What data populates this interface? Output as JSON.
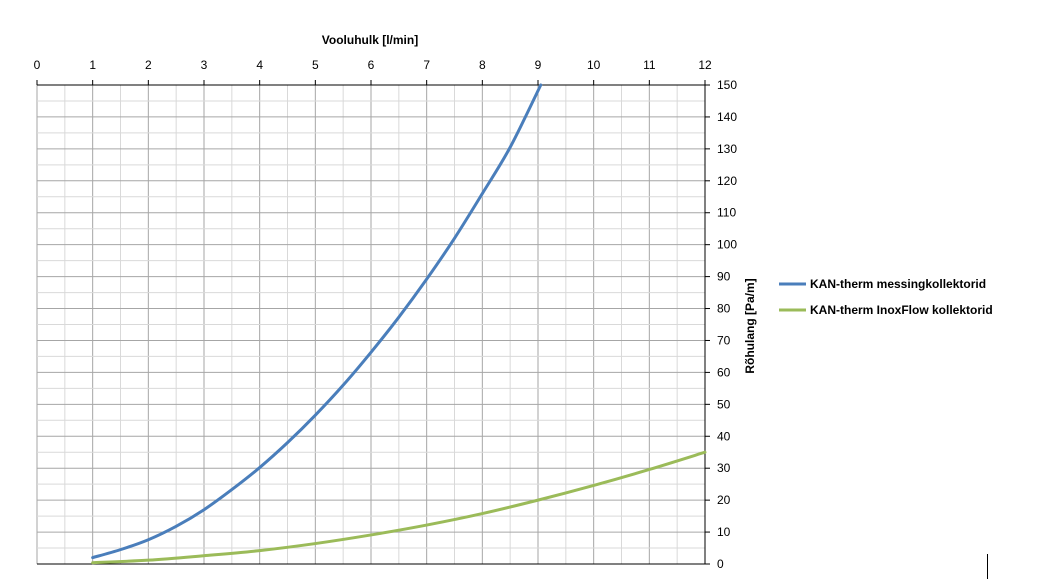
{
  "chart_data": {
    "type": "line",
    "title": "",
    "xlabel": "Vooluhulk [l/min]",
    "ylabel": "Rõhulang [Pa/m]",
    "xlim": [
      0,
      12
    ],
    "ylim": [
      0,
      150
    ],
    "x_ticks": [
      "0",
      "1",
      "2",
      "3",
      "4",
      "5",
      "6",
      "7",
      "8",
      "9",
      "10",
      "11",
      "12"
    ],
    "y_ticks": [
      "0",
      "10",
      "20",
      "30",
      "40",
      "50",
      "60",
      "70",
      "80",
      "90",
      "100",
      "110",
      "120",
      "130",
      "140",
      "150"
    ],
    "x_axis_position": "top",
    "y_axis_position": "right",
    "grid": true,
    "legend_position": "right",
    "series": [
      {
        "name": "KAN-therm messingkollektorid",
        "color": "#4a7ebb",
        "x": [
          1,
          1.5,
          2,
          2.5,
          3,
          3.5,
          4,
          4.5,
          5,
          5.5,
          6,
          6.5,
          7,
          7.5,
          8,
          8.5,
          9.05
        ],
        "y": [
          2,
          4.5,
          7.6,
          11.8,
          17,
          23.3,
          30.2,
          38,
          46.6,
          56,
          66.3,
          77.3,
          89.2,
          102,
          116,
          130.5,
          150
        ]
      },
      {
        "name": "KAN-therm InoxFlow kollektorid",
        "color": "#9bbb59",
        "x": [
          1,
          2,
          3,
          4,
          5,
          6,
          7,
          8,
          9,
          10,
          11,
          12
        ],
        "y": [
          0.4,
          1.2,
          2.6,
          4.2,
          6.4,
          9.1,
          12.2,
          15.8,
          20,
          24.6,
          29.6,
          35
        ]
      }
    ]
  }
}
